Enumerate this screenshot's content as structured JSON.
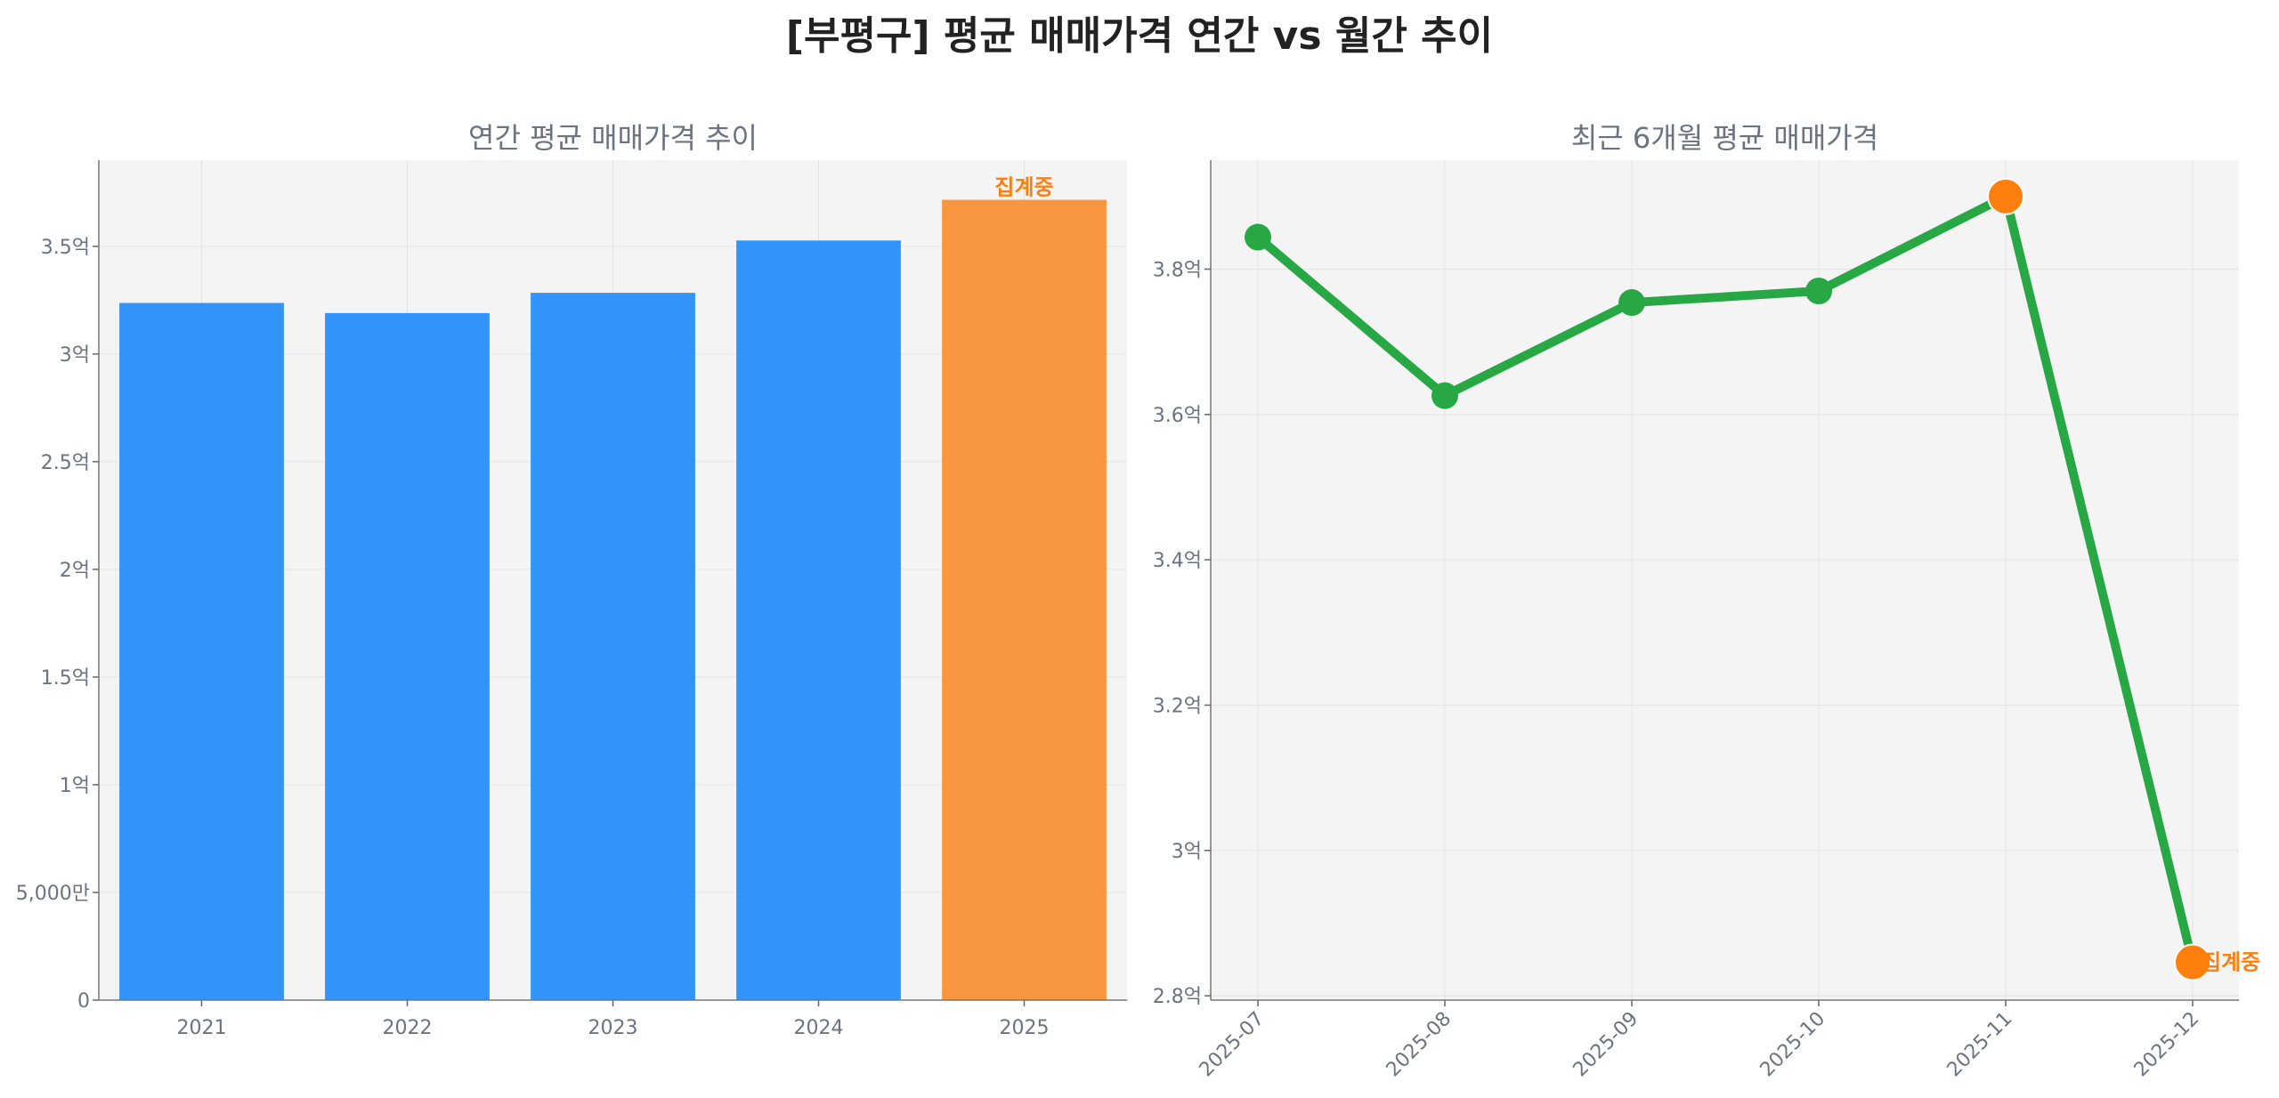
{
  "title": "[부평구] 평균 매매가격 연간 vs 월간 추이",
  "chart_data": [
    {
      "type": "bar",
      "title": "연간 평균 매매가격 추이",
      "categories": [
        "2021",
        "2022",
        "2023",
        "2024",
        "2025"
      ],
      "values": [
        3.237,
        3.19,
        3.284,
        3.527,
        3.716
      ],
      "unit": "억",
      "ylim": [
        0,
        3.9
      ],
      "yticks": [
        0,
        0.5,
        1,
        1.5,
        2,
        2.5,
        3,
        3.5
      ],
      "ytick_labels": [
        "0",
        "5,000만",
        "1억",
        "1.5억",
        "2억",
        "2.5억",
        "3억",
        "3.5억"
      ],
      "bar_colors": [
        "#3094fb",
        "#3094fb",
        "#3094fb",
        "#3094fb",
        "#f99640"
      ],
      "annotations": [
        {
          "category": "2025",
          "text": "집계중",
          "color": "#ff7f0e"
        }
      ],
      "grid": true
    },
    {
      "type": "line",
      "title": "최근 6개월 평균 매매가격",
      "x": [
        "2025-07",
        "2025-08",
        "2025-09",
        "2025-10",
        "2025-11",
        "2025-12"
      ],
      "values": [
        3.844,
        3.626,
        3.754,
        3.77,
        3.9,
        2.846
      ],
      "unit": "억",
      "ylim": [
        2.794,
        3.95
      ],
      "yticks": [
        2.8,
        3.0,
        3.2,
        3.4,
        3.6,
        3.8
      ],
      "ytick_labels": [
        "2.8억",
        "3억",
        "3.2억",
        "3.4억",
        "3.6억",
        "3.8억"
      ],
      "line_color": "#28a745",
      "highlight_points": [
        "2025-11",
        "2025-12"
      ],
      "highlight_color": "#ff7f0e",
      "annotations": [
        {
          "x": "2025-12",
          "text": "집계중",
          "color": "#ff7f0e"
        }
      ],
      "grid": true
    }
  ]
}
